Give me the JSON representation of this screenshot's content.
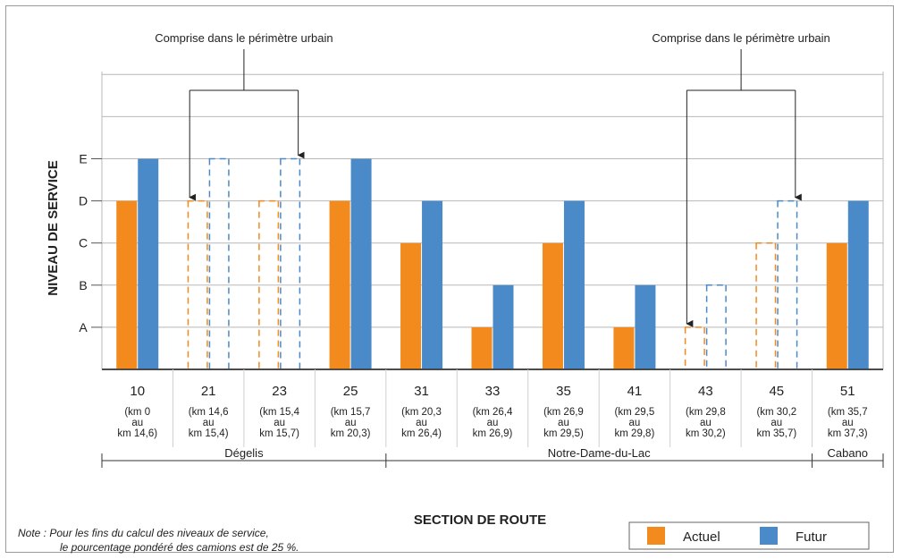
{
  "chart_data": {
    "type": "bar",
    "ylabel": "NIVEAU DE SERVICE",
    "xlabel": "SECTION DE ROUTE",
    "y_levels": [
      "A",
      "B",
      "C",
      "D",
      "E"
    ],
    "ylim": [
      0,
      6
    ],
    "categories": [
      {
        "section": "10",
        "range": [
          "(km 0",
          "au",
          "km 14,6)"
        ],
        "actuel": "D",
        "futur": "E",
        "dashed": false
      },
      {
        "section": "21",
        "range": [
          "(km 14,6",
          "au",
          "km 15,4)"
        ],
        "actuel": "D",
        "futur": "E",
        "dashed": true
      },
      {
        "section": "23",
        "range": [
          "(km 15,4",
          "au",
          "km 15,7)"
        ],
        "actuel": "D",
        "futur": "E",
        "dashed": true
      },
      {
        "section": "25",
        "range": [
          "(km 15,7",
          "au",
          "km 20,3)"
        ],
        "actuel": "D",
        "futur": "E",
        "dashed": false
      },
      {
        "section": "31",
        "range": [
          "(km 20,3",
          "au",
          "km 26,4)"
        ],
        "actuel": "C",
        "futur": "D",
        "dashed": false
      },
      {
        "section": "33",
        "range": [
          "(km 26,4",
          "au",
          "km 26,9)"
        ],
        "actuel": "A",
        "futur": "B",
        "dashed": false
      },
      {
        "section": "35",
        "range": [
          "(km 26,9",
          "au",
          "km 29,5)"
        ],
        "actuel": "C",
        "futur": "D",
        "dashed": false
      },
      {
        "section": "41",
        "range": [
          "(km 29,5",
          "au",
          "km 29,8)"
        ],
        "actuel": "A",
        "futur": "B",
        "dashed": false
      },
      {
        "section": "43",
        "range": [
          "(km 29,8",
          "au",
          "km 30,2)"
        ],
        "actuel": "A",
        "futur": "B",
        "dashed": true
      },
      {
        "section": "45",
        "range": [
          "(km 30,2",
          "au",
          "km 35,7)"
        ],
        "actuel": "C",
        "futur": "D",
        "dashed": true
      },
      {
        "section": "51",
        "range": [
          "(km 35,7",
          "au",
          "km 37,3)"
        ],
        "actuel": "C",
        "futur": "D",
        "dashed": false
      }
    ],
    "series": [
      {
        "name": "Actuel",
        "color": "#f28a1e"
      },
      {
        "name": "Futur",
        "color": "#4a8ac9"
      }
    ],
    "groups": [
      {
        "label": "Dégelis",
        "from": 0,
        "to": 3
      },
      {
        "label": "Notre-Dame-du-Lac",
        "from": 4,
        "to": 9
      },
      {
        "label": "Cabano",
        "from": 10,
        "to": 10
      }
    ],
    "annotations": [
      {
        "text": "Comprise dans le périmètre urbain",
        "targets": [
          1,
          2
        ]
      },
      {
        "text": "Comprise dans le périmètre urbain",
        "targets": [
          8,
          9
        ]
      }
    ],
    "legend_position": "bottom-right"
  },
  "note": {
    "line1": "Note : Pour les fins du calcul des niveaux de service,",
    "line2": "le pourcentage pondéré des camions est de 25 %."
  }
}
